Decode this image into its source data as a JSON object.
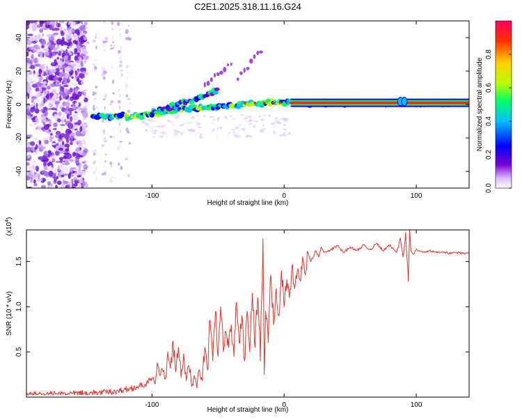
{
  "chart_data": [
    {
      "type": "heatmap",
      "title": "C2E1.2025.318.11.16.G24",
      "xlabel": "Height of straight line (km)",
      "ylabel": "Frequency (Hz)",
      "xlim": [
        -195,
        140
      ],
      "ylim": [
        -50,
        50
      ],
      "xticks": [
        -100,
        0,
        100
      ],
      "xtick_labels": [
        "-100",
        "0",
        "100"
      ],
      "yticks": [
        -40,
        -20,
        0,
        20,
        40
      ],
      "ytick_labels": [
        "-40",
        "-20",
        "0",
        "20",
        "40"
      ],
      "colorbar": {
        "label": "Normalized spectral amplitude",
        "range": [
          0,
          1
        ],
        "ticks": [
          0.0,
          0.2,
          0.4,
          0.6,
          0.8
        ],
        "tick_labels": [
          "0.0",
          "0.2",
          "0.4",
          "0.6",
          "0.8"
        ],
        "colormap": [
          "#ffffff",
          "#7b00d6",
          "#0000ff",
          "#00bfff",
          "#00ff66",
          "#b5ff00",
          "#ffd000",
          "#ff3000",
          "#ff0060"
        ]
      },
      "features": [
        {
          "name": "main-trace",
          "points": [
            [
              -145,
              -7
            ],
            [
              -110,
              -7
            ],
            [
              -90,
              -4
            ],
            [
              -70,
              -2
            ],
            [
              -50,
              -1
            ],
            [
              -30,
              0
            ],
            [
              -10,
              1
            ],
            [
              0,
              1
            ],
            [
              20,
              1
            ],
            [
              140,
              1
            ]
          ],
          "amplitude": 0.6
        },
        {
          "name": "upper-branch",
          "points": [
            [
              -100,
              -5
            ],
            [
              -80,
              0
            ],
            [
              -60,
              5
            ],
            [
              -50,
              9
            ]
          ],
          "amplitude": 0.4
        },
        {
          "name": "faint-branch-1",
          "points": [
            [
              -60,
              12
            ],
            [
              -50,
              18
            ],
            [
              -40,
              24
            ]
          ],
          "amplitude": 0.15
        },
        {
          "name": "faint-branch-2",
          "points": [
            [
              -35,
              15
            ],
            [
              -25,
              25
            ],
            [
              -17,
              33
            ]
          ],
          "amplitude": 0.15
        },
        {
          "name": "steady-band",
          "points": [
            [
              5,
              1
            ],
            [
              140,
              1
            ]
          ],
          "amplitude": 0.95
        }
      ]
    },
    {
      "type": "line",
      "title": "",
      "xlabel": "Height of straight line (km)",
      "ylabel": "SNR (10 * v/v)",
      "yscale_label": "(x10",
      "yscale_exp": "4",
      "xlim": [
        -195,
        140
      ],
      "ylim": [
        0,
        1.85
      ],
      "xticks": [
        -100,
        0,
        100
      ],
      "xtick_labels": [
        "-100",
        "0",
        "100"
      ],
      "yticks": [
        0.5,
        1.0,
        1.5
      ],
      "ytick_labels": [
        "0.5",
        "1.0",
        "1.5"
      ],
      "series": [
        {
          "name": "SNR",
          "color": "#e8322a",
          "x": [
            -195,
            -180,
            -160,
            -140,
            -130,
            -120,
            -110,
            -105,
            -100,
            -98,
            -96,
            -94,
            -92,
            -90,
            -88,
            -86,
            -84,
            -82,
            -80,
            -78,
            -76,
            -74,
            -72,
            -70,
            -68,
            -66,
            -64,
            -62,
            -60,
            -58,
            -56,
            -54,
            -52,
            -50,
            -48,
            -46,
            -44,
            -42,
            -40,
            -38,
            -36,
            -34,
            -32,
            -30,
            -28,
            -26,
            -24,
            -22,
            -20,
            -18,
            -16,
            -15,
            -14,
            -12,
            -10,
            -8,
            -6,
            -4,
            -2,
            0,
            2,
            4,
            6,
            8,
            10,
            12,
            14,
            16,
            18,
            20,
            22,
            24,
            26,
            28,
            30,
            35,
            40,
            45,
            50,
            55,
            60,
            65,
            70,
            75,
            80,
            85,
            88,
            90,
            92,
            94,
            95,
            96,
            98,
            100,
            105,
            110,
            115,
            120,
            125,
            130,
            135,
            140
          ],
          "values": [
            0.03,
            0.03,
            0.04,
            0.05,
            0.06,
            0.08,
            0.12,
            0.14,
            0.2,
            0.15,
            0.38,
            0.24,
            0.3,
            0.2,
            0.5,
            0.32,
            0.62,
            0.28,
            0.55,
            0.22,
            0.48,
            0.18,
            0.35,
            0.12,
            0.24,
            0.1,
            0.3,
            0.18,
            0.55,
            0.3,
            0.85,
            0.4,
            0.95,
            0.45,
            1.0,
            0.5,
            0.72,
            0.55,
            0.8,
            0.45,
            1.05,
            0.6,
            0.9,
            0.4,
            0.95,
            0.5,
            1.15,
            0.55,
            1.1,
            0.4,
            1.75,
            0.25,
            0.95,
            0.6,
            1.35,
            0.8,
            1.2,
            0.9,
            1.4,
            1.0,
            1.3,
            1.1,
            1.45,
            1.2,
            1.4,
            1.3,
            1.55,
            1.35,
            1.6,
            1.5,
            1.55,
            1.62,
            1.55,
            1.66,
            1.6,
            1.62,
            1.68,
            1.6,
            1.66,
            1.62,
            1.68,
            1.63,
            1.7,
            1.62,
            1.68,
            1.6,
            1.76,
            1.55,
            1.82,
            1.28,
            1.85,
            1.62,
            1.58,
            1.63,
            1.6,
            1.62,
            1.6,
            1.61,
            1.59,
            1.6,
            1.59,
            1.59
          ]
        }
      ]
    }
  ]
}
